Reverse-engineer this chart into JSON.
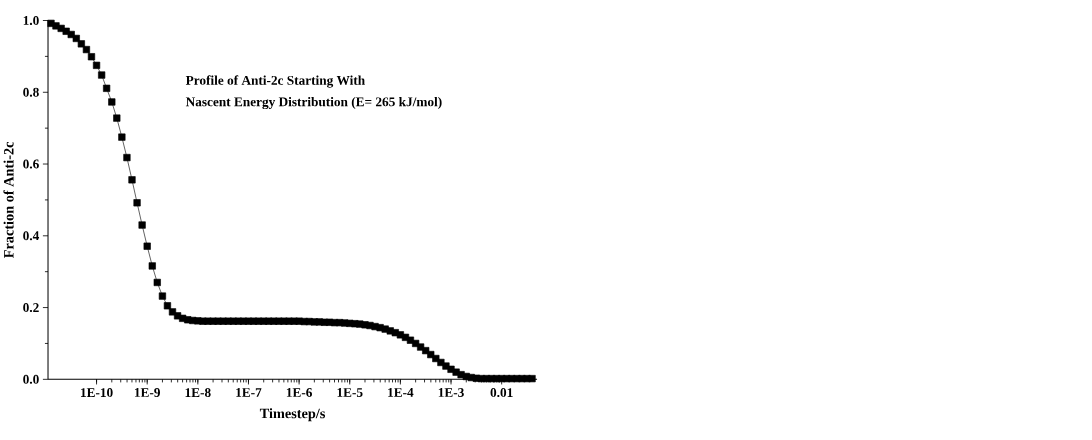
{
  "chart_data": {
    "type": "line",
    "xlabel": "Timestep/s",
    "ylabel": "Fraction of Anti-2c",
    "annotations": [
      "Profile of Anti-2c Starting With",
      "Nascent Energy Distribution (E= 265 kJ/mol)"
    ],
    "log": "x",
    "marker": "square",
    "line_style": "solid",
    "color": "#000000",
    "xlim": [
      1.1e-11,
      0.05
    ],
    "ylim": [
      0,
      1.0
    ],
    "xticks": [
      {
        "value": 1e-10,
        "label": "1E-10"
      },
      {
        "value": 1e-09,
        "label": "1E-9"
      },
      {
        "value": 1e-08,
        "label": "1E-8"
      },
      {
        "value": 1e-07,
        "label": "1E-7"
      },
      {
        "value": 1e-06,
        "label": "1E-6"
      },
      {
        "value": 1e-05,
        "label": "1E-5"
      },
      {
        "value": 0.0001,
        "label": "1E-4"
      },
      {
        "value": 0.001,
        "label": "1E-3"
      },
      0.01
    ],
    "yticks": [
      {
        "value": 0,
        "label": "0.0"
      },
      0.2,
      0.4,
      0.6,
      0.8,
      {
        "value": 1.0,
        "label": "1.0"
      }
    ],
    "x": [
      1.26e-11,
      1.58e-11,
      2e-11,
      2.51e-11,
      3.16e-11,
      3.98e-11,
      5.01e-11,
      6.31e-11,
      7.94e-11,
      1e-10,
      1.26e-10,
      1.58e-10,
      2e-10,
      2.51e-10,
      3.16e-10,
      3.98e-10,
      5.01e-10,
      6.31e-10,
      7.94e-10,
      1e-09,
      1.26e-09,
      1.58e-09,
      2e-09,
      2.51e-09,
      3.16e-09,
      3.98e-09,
      5.01e-09,
      6.31e-09,
      7.94e-09,
      1e-08,
      1.26e-08,
      1.58e-08,
      2e-08,
      2.51e-08,
      3.16e-08,
      3.98e-08,
      5.01e-08,
      6.31e-08,
      7.94e-08,
      1e-07,
      1.26e-07,
      1.58e-07,
      2e-07,
      2.51e-07,
      3.16e-07,
      3.98e-07,
      5.01e-07,
      6.31e-07,
      7.94e-07,
      1e-06,
      1.26e-06,
      1.58e-06,
      2e-06,
      2.51e-06,
      3.16e-06,
      3.98e-06,
      5.01e-06,
      6.31e-06,
      7.94e-06,
      1e-05,
      1.26e-05,
      1.58e-05,
      2e-05,
      2.51e-05,
      3.16e-05,
      3.98e-05,
      5.01e-05,
      6.31e-05,
      7.94e-05,
      0.0001,
      0.000126,
      0.000158,
      0.0002,
      0.000251,
      0.000316,
      0.000398,
      0.000501,
      0.000631,
      0.000794,
      0.001,
      0.00126,
      0.00158,
      0.002,
      0.00251,
      0.00316,
      0.00398,
      0.00501,
      0.00631,
      0.00794,
      0.01,
      0.0126,
      0.0158,
      0.02,
      0.0251,
      0.0316,
      0.0398
    ],
    "values": [
      0.992,
      0.985,
      0.978,
      0.97,
      0.961,
      0.95,
      0.935,
      0.919,
      0.899,
      0.875,
      0.848,
      0.811,
      0.773,
      0.728,
      0.675,
      0.618,
      0.556,
      0.492,
      0.43,
      0.371,
      0.316,
      0.27,
      0.232,
      0.205,
      0.188,
      0.177,
      0.17,
      0.166,
      0.164,
      0.163,
      0.162,
      0.162,
      0.162,
      0.162,
      0.162,
      0.162,
      0.162,
      0.162,
      0.162,
      0.162,
      0.162,
      0.162,
      0.162,
      0.162,
      0.162,
      0.162,
      0.162,
      0.162,
      0.162,
      0.162,
      0.161,
      0.161,
      0.16,
      0.16,
      0.159,
      0.159,
      0.158,
      0.158,
      0.157,
      0.156,
      0.155,
      0.154,
      0.152,
      0.15,
      0.147,
      0.144,
      0.14,
      0.135,
      0.13,
      0.124,
      0.117,
      0.109,
      0.1,
      0.09,
      0.08,
      0.069,
      0.058,
      0.047,
      0.037,
      0.028,
      0.02,
      0.013,
      0.008,
      0.005,
      0.003,
      0.002,
      0.002,
      0.002,
      0.002,
      0.002,
      0.002,
      0.002,
      0.002,
      0.002,
      0.002,
      0.002
    ]
  }
}
